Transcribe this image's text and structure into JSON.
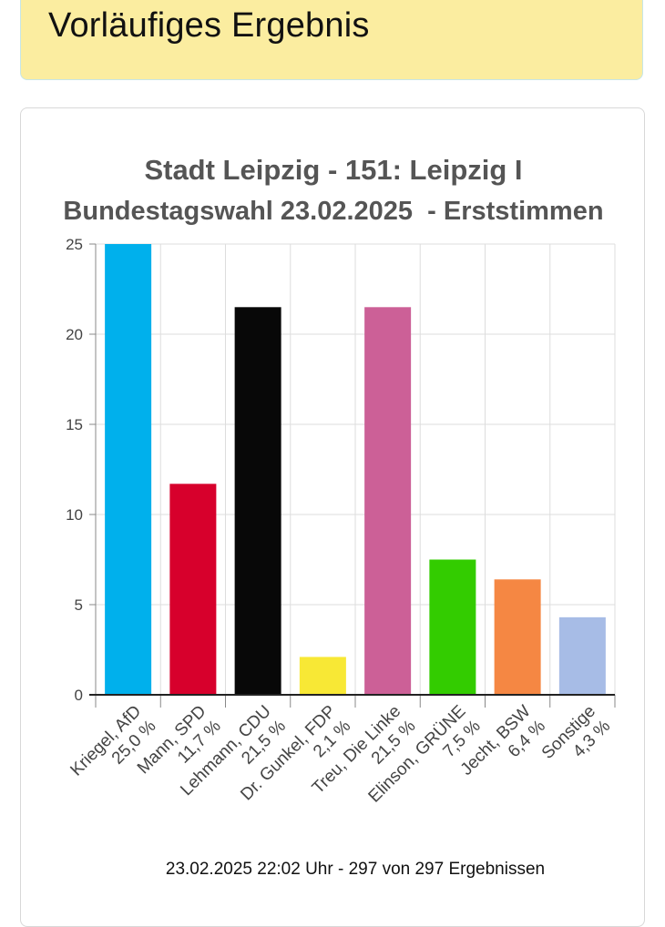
{
  "header": {
    "title": "Vorläufiges Ergebnis"
  },
  "chart_data": {
    "type": "bar",
    "title": "Stadt Leipzig - 151: Leipzig I",
    "subtitle": "Bundestagswahl 23.02.2025  - Erststimmen",
    "categories": [
      "Kriegel, AfD",
      "Mann, SPD",
      "Lehmann, CDU",
      "Dr. Gunkel, FDP",
      "Treu, Die Linke",
      "Elinson, GRÜNE",
      "Jecht, BSW",
      "Sonstige"
    ],
    "value_labels": [
      "25,0 %",
      "11,7 %",
      "21,5 %",
      "2,1 %",
      "21,5 %",
      "7,5 %",
      "6,4 %",
      "4,3 %"
    ],
    "values": [
      25.0,
      11.7,
      21.5,
      2.1,
      21.5,
      7.5,
      6.4,
      4.3
    ],
    "colors": [
      "#00b0ec",
      "#d7002c",
      "#080808",
      "#f8e835",
      "#cc6097",
      "#33cc00",
      "#f58743",
      "#a7bce6"
    ],
    "ylim": [
      0,
      25
    ],
    "yticks": [
      "0",
      "5",
      "10",
      "15",
      "20",
      "25"
    ],
    "grid": true,
    "xlabel": "",
    "ylabel": ""
  },
  "footer": {
    "text": "23.02.2025 22:02 Uhr - 297 von 297 Ergebnissen"
  }
}
